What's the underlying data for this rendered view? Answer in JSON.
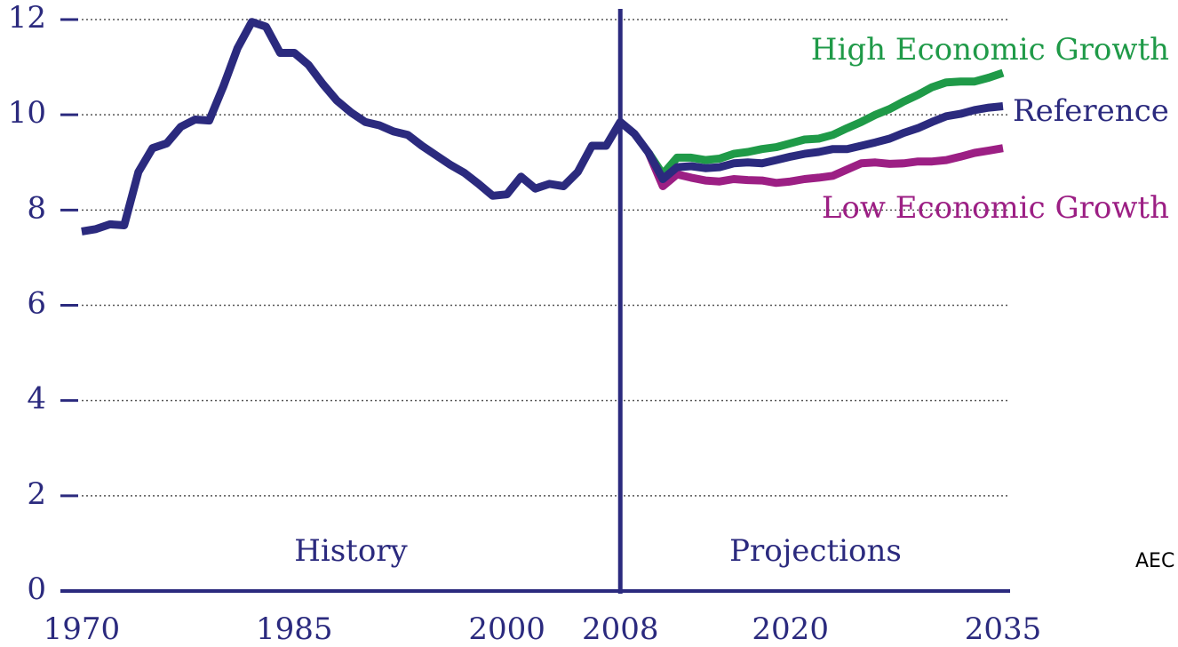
{
  "chart_data": {
    "type": "line",
    "x": [
      1970,
      1971,
      1972,
      1973,
      1974,
      1975,
      1976,
      1977,
      1978,
      1979,
      1980,
      1981,
      1982,
      1983,
      1984,
      1985,
      1986,
      1987,
      1988,
      1989,
      1990,
      1991,
      1992,
      1993,
      1994,
      1995,
      1996,
      1997,
      1998,
      1999,
      2000,
      2001,
      2002,
      2003,
      2004,
      2005,
      2006,
      2007,
      2008,
      2009,
      2010,
      2011,
      2012,
      2013,
      2014,
      2015,
      2016,
      2017,
      2018,
      2019,
      2020,
      2021,
      2022,
      2023,
      2024,
      2025,
      2026,
      2027,
      2028,
      2029,
      2030,
      2031,
      2032,
      2033,
      2034,
      2035
    ],
    "series": [
      {
        "name": "High Economic Growth",
        "color": "#1f9a48",
        "values": [
          null,
          null,
          null,
          null,
          null,
          null,
          null,
          null,
          null,
          null,
          null,
          null,
          null,
          null,
          null,
          null,
          null,
          null,
          null,
          null,
          null,
          null,
          null,
          null,
          null,
          null,
          null,
          null,
          null,
          null,
          null,
          null,
          null,
          null,
          null,
          null,
          null,
          null,
          null,
          null,
          9.2,
          8.75,
          9.1,
          9.1,
          9.05,
          9.08,
          9.18,
          9.22,
          9.28,
          9.32,
          9.4,
          9.48,
          9.5,
          9.58,
          9.72,
          9.85,
          10.0,
          10.12,
          10.28,
          10.42,
          10.58,
          10.68,
          10.7,
          10.7,
          10.78,
          10.88
        ]
      },
      {
        "name": "Low Economic Growth",
        "color": "#9c1f84",
        "values": [
          null,
          null,
          null,
          null,
          null,
          null,
          null,
          null,
          null,
          null,
          null,
          null,
          null,
          null,
          null,
          null,
          null,
          null,
          null,
          null,
          null,
          null,
          null,
          null,
          null,
          null,
          null,
          null,
          null,
          null,
          null,
          null,
          null,
          null,
          null,
          null,
          null,
          null,
          null,
          null,
          9.2,
          8.5,
          8.75,
          8.68,
          8.62,
          8.6,
          8.65,
          8.63,
          8.62,
          8.57,
          8.6,
          8.65,
          8.68,
          8.72,
          8.85,
          8.98,
          9.0,
          8.97,
          8.98,
          9.02,
          9.02,
          9.05,
          9.12,
          9.2,
          9.25,
          9.3
        ]
      },
      {
        "name": "Reference",
        "color": "#2b2a7e",
        "values": [
          7.55,
          7.6,
          7.7,
          7.68,
          8.8,
          9.3,
          9.4,
          9.75,
          9.9,
          9.88,
          10.6,
          11.4,
          11.95,
          11.85,
          11.3,
          11.3,
          11.05,
          10.65,
          10.3,
          10.05,
          9.85,
          9.78,
          9.65,
          9.58,
          9.35,
          9.15,
          8.95,
          8.78,
          8.55,
          8.3,
          8.33,
          8.7,
          8.45,
          8.55,
          8.5,
          8.8,
          9.35,
          9.35,
          9.85,
          9.6,
          9.2,
          8.65,
          8.9,
          8.92,
          8.88,
          8.9,
          8.98,
          9.0,
          8.98,
          9.05,
          9.12,
          9.18,
          9.22,
          9.28,
          9.28,
          9.35,
          9.42,
          9.5,
          9.62,
          9.72,
          9.85,
          9.97,
          10.02,
          10.1,
          10.15,
          10.18
        ]
      }
    ],
    "xlim": [
      1968.5,
      2035.5
    ],
    "xticks": [
      1970,
      1985,
      2000,
      2008,
      2020,
      2035
    ],
    "ylim": [
      0,
      12
    ],
    "yticks": [
      0,
      2,
      4,
      6,
      8,
      10,
      12
    ],
    "grid": true,
    "divider": 2008,
    "annotations": [
      "History",
      "Projections"
    ],
    "source": "AEC"
  }
}
